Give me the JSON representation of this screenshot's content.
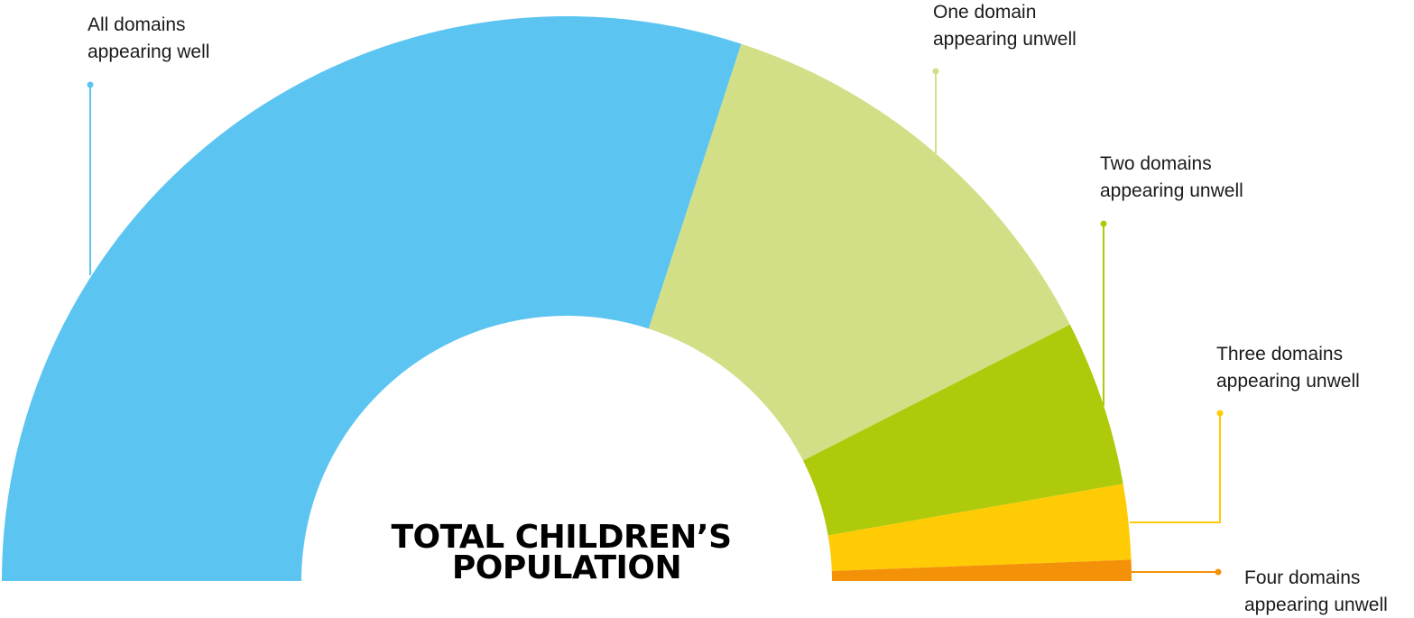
{
  "chart_data": {
    "type": "pie",
    "variant": "half-donut",
    "center_title": [
      "TOTAL CHILDREN’S",
      "POPULATION"
    ],
    "segments": [
      {
        "label": [
          "All domains",
          "appearing well"
        ],
        "value": 60.0,
        "color": "#5BC4F1"
      },
      {
        "label": [
          "One domain",
          "appearing unwell"
        ],
        "value": 25.0,
        "color": "#D3DF87"
      },
      {
        "label": [
          "Two domains",
          "appearing unwell"
        ],
        "value": 9.5,
        "color": "#AFCA0B"
      },
      {
        "label": [
          "Three domains",
          "appearing unwell"
        ],
        "value": 4.3,
        "color": "#FFCB05"
      },
      {
        "label": [
          "Four domains",
          "appearing unwell"
        ],
        "value": 1.2,
        "color": "#F39208"
      }
    ]
  }
}
